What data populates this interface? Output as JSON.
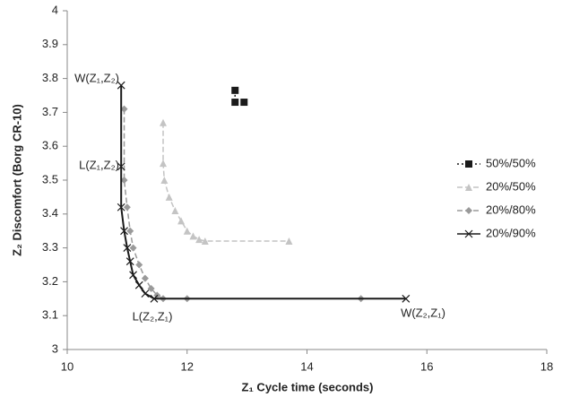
{
  "chart_data": {
    "type": "line",
    "xlabel": "Z₁ Cycle time (seconds)",
    "ylabel": "Z₂ Discomfort (Borg CR-10)",
    "xlim": [
      10,
      18
    ],
    "xticks": [
      10,
      12,
      14,
      16,
      18
    ],
    "ylim": [
      3,
      4
    ],
    "yticks": [
      3,
      3.1,
      3.2,
      3.3,
      3.4,
      3.5,
      3.6,
      3.7,
      3.8,
      3.9,
      4
    ],
    "grid": false,
    "legend": "right",
    "annotations": [
      "W(Z₁,Z₂)",
      "L(Z₁,Z₂)",
      "L(Z₂,Z₁)",
      "W(Z₂,Z₁)"
    ],
    "series": [
      {
        "name": "50%/50%",
        "color": "#1a1a1a",
        "marker": "square",
        "dash": "dotted",
        "x": [
          12.8,
          12.8,
          12.95
        ],
        "values": [
          3.765,
          3.73,
          3.73
        ]
      },
      {
        "name": "20%/50%",
        "color": "#c4c4c4",
        "marker": "triangle",
        "dash": "dashed",
        "x": [
          11.6,
          11.6,
          11.62,
          11.7,
          11.8,
          11.9,
          12.0,
          12.1,
          12.2,
          12.3,
          13.7
        ],
        "values": [
          3.67,
          3.55,
          3.5,
          3.45,
          3.41,
          3.38,
          3.35,
          3.335,
          3.325,
          3.32,
          3.32
        ]
      },
      {
        "name": "20%/80%",
        "color": "#9a9a9a",
        "marker": "diamond",
        "dash": "dashed",
        "x": [
          10.95,
          10.95,
          11.0,
          11.05,
          11.1,
          11.2,
          11.3,
          11.4,
          11.5,
          11.6,
          12.0,
          14.9
        ],
        "values": [
          3.71,
          3.5,
          3.42,
          3.35,
          3.3,
          3.25,
          3.21,
          3.18,
          3.16,
          3.15,
          3.15,
          3.15
        ]
      },
      {
        "name": "20%/90%",
        "color": "#1a1a1a",
        "marker": "x",
        "dash": "solid",
        "x": [
          10.9,
          10.9,
          10.9,
          10.95,
          11.0,
          11.05,
          11.1,
          11.2,
          11.3,
          11.45,
          15.65
        ],
        "values": [
          3.78,
          3.54,
          3.42,
          3.35,
          3.3,
          3.26,
          3.22,
          3.19,
          3.165,
          3.15,
          3.15
        ]
      }
    ]
  }
}
